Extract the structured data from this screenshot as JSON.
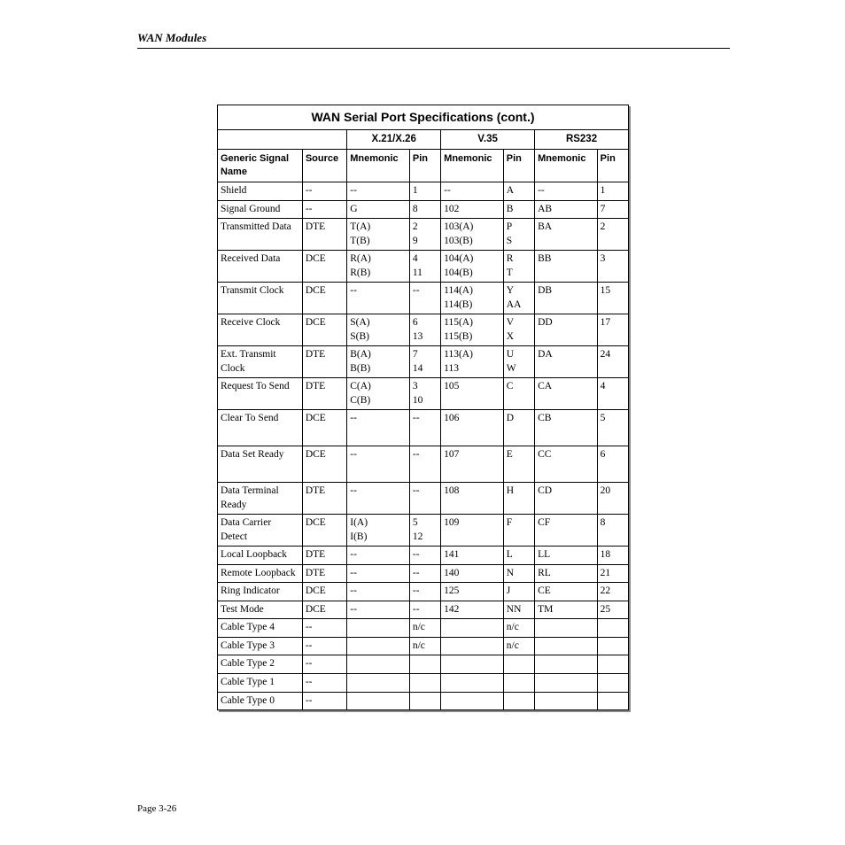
{
  "header": {
    "text": "WAN Modules"
  },
  "footer": {
    "text": "Page 3-26"
  },
  "table": {
    "title": "WAN Serial Port Specifications (cont.)",
    "groups": {
      "g1": "X.21/X.26",
      "g2": "V.35",
      "g3": "RS232"
    },
    "colheads": {
      "name": "Generic Signal Name",
      "source": "Source",
      "mnem": "Mnemonic",
      "pin": "Pin"
    },
    "rows": [
      {
        "name": "Shield",
        "source": "--",
        "m1": "--",
        "p1": "1",
        "m2": "--",
        "p2": "A",
        "m3": "--",
        "p3": "1"
      },
      {
        "name": "Signal Ground",
        "source": "--",
        "m1": "G",
        "p1": "8",
        "m2": "102",
        "p2": "B",
        "m3": "AB",
        "p3": "7"
      },
      {
        "name": "Transmitted Data",
        "source": "DTE",
        "m1": "T(A)\nT(B)",
        "p1": "2\n9",
        "m2": "103(A)\n103(B)",
        "p2": "P\nS",
        "m3": "BA",
        "p3": "2"
      },
      {
        "name": "Received Data",
        "source": "DCE",
        "m1": "R(A)\nR(B)",
        "p1": "4\n11",
        "m2": "104(A)\n104(B)",
        "p2": "R\nT",
        "m3": "BB",
        "p3": "3"
      },
      {
        "name": "Transmit Clock",
        "source": "DCE",
        "m1": "--",
        "p1": "--",
        "m2": "114(A)\n114(B)",
        "p2": "Y\nAA",
        "m3": "DB",
        "p3": "15"
      },
      {
        "name": "Receive Clock",
        "source": "DCE",
        "m1": "S(A)\nS(B)",
        "p1": "6\n13",
        "m2": "115(A)\n115(B)",
        "p2": "V\nX",
        "m3": "DD",
        "p3": "17"
      },
      {
        "name": "Ext. Transmit Clock",
        "source": "DTE",
        "m1": "B(A)\nB(B)",
        "p1": "7\n14",
        "m2": "113(A)\n113",
        "p2": "U\nW",
        "m3": "DA",
        "p3": "24"
      },
      {
        "name": "Request To Send",
        "source": "DTE",
        "m1": "C(A)\nC(B)",
        "p1": "3\n10",
        "m2": "105",
        "p2": "C",
        "m3": "CA",
        "p3": "4"
      },
      {
        "name": "Clear To Send",
        "source": "DCE",
        "m1": "--",
        "p1": "--",
        "m2": "106",
        "p2": "D",
        "m3": "CB",
        "p3": "5",
        "tall": true
      },
      {
        "name": "Data Set Ready",
        "source": "DCE",
        "m1": "--",
        "p1": "--",
        "m2": "107",
        "p2": "E",
        "m3": "CC",
        "p3": "6",
        "tall": true
      },
      {
        "name": "Data Terminal Ready",
        "source": "DTE",
        "m1": "--",
        "p1": "--",
        "m2": "108",
        "p2": "H",
        "m3": "CD",
        "p3": "20"
      },
      {
        "name": "Data Carrier Detect",
        "source": "DCE",
        "m1": "I(A)\nI(B)",
        "p1": "5\n12",
        "m2": "109",
        "p2": "F",
        "m3": "CF",
        "p3": "8"
      },
      {
        "name": "Local Loopback",
        "source": "DTE",
        "m1": "--",
        "p1": "--",
        "m2": "141",
        "p2": "L",
        "m3": "LL",
        "p3": "18"
      },
      {
        "name": "Remote Loopback",
        "source": "DTE",
        "m1": "--",
        "p1": "--",
        "m2": "140",
        "p2": "N",
        "m3": "RL",
        "p3": "21"
      },
      {
        "name": "Ring Indicator",
        "source": "DCE",
        "m1": "--",
        "p1": "--",
        "m2": "125",
        "p2": "J",
        "m3": "CE",
        "p3": "22"
      },
      {
        "name": "Test Mode",
        "source": "DCE",
        "m1": "--",
        "p1": "--",
        "m2": "142",
        "p2": "NN",
        "m3": "TM",
        "p3": "25"
      },
      {
        "name": "Cable Type 4",
        "source": "--",
        "m1": "",
        "p1": "n/c",
        "m2": "",
        "p2": "n/c",
        "m3": "",
        "p3": ""
      },
      {
        "name": "Cable Type 3",
        "source": "--",
        "m1": "",
        "p1": "n/c",
        "m2": "",
        "p2": "n/c",
        "m3": "",
        "p3": ""
      },
      {
        "name": "Cable Type 2",
        "source": "--",
        "m1": "",
        "p1": "",
        "m2": "",
        "p2": "",
        "m3": "",
        "p3": ""
      },
      {
        "name": "Cable Type 1",
        "source": "--",
        "m1": "",
        "p1": "",
        "m2": "",
        "p2": "",
        "m3": "",
        "p3": ""
      },
      {
        "name": "Cable Type 0",
        "source": "--",
        "m1": "",
        "p1": "",
        "m2": "",
        "p2": "",
        "m3": "",
        "p3": ""
      }
    ]
  }
}
